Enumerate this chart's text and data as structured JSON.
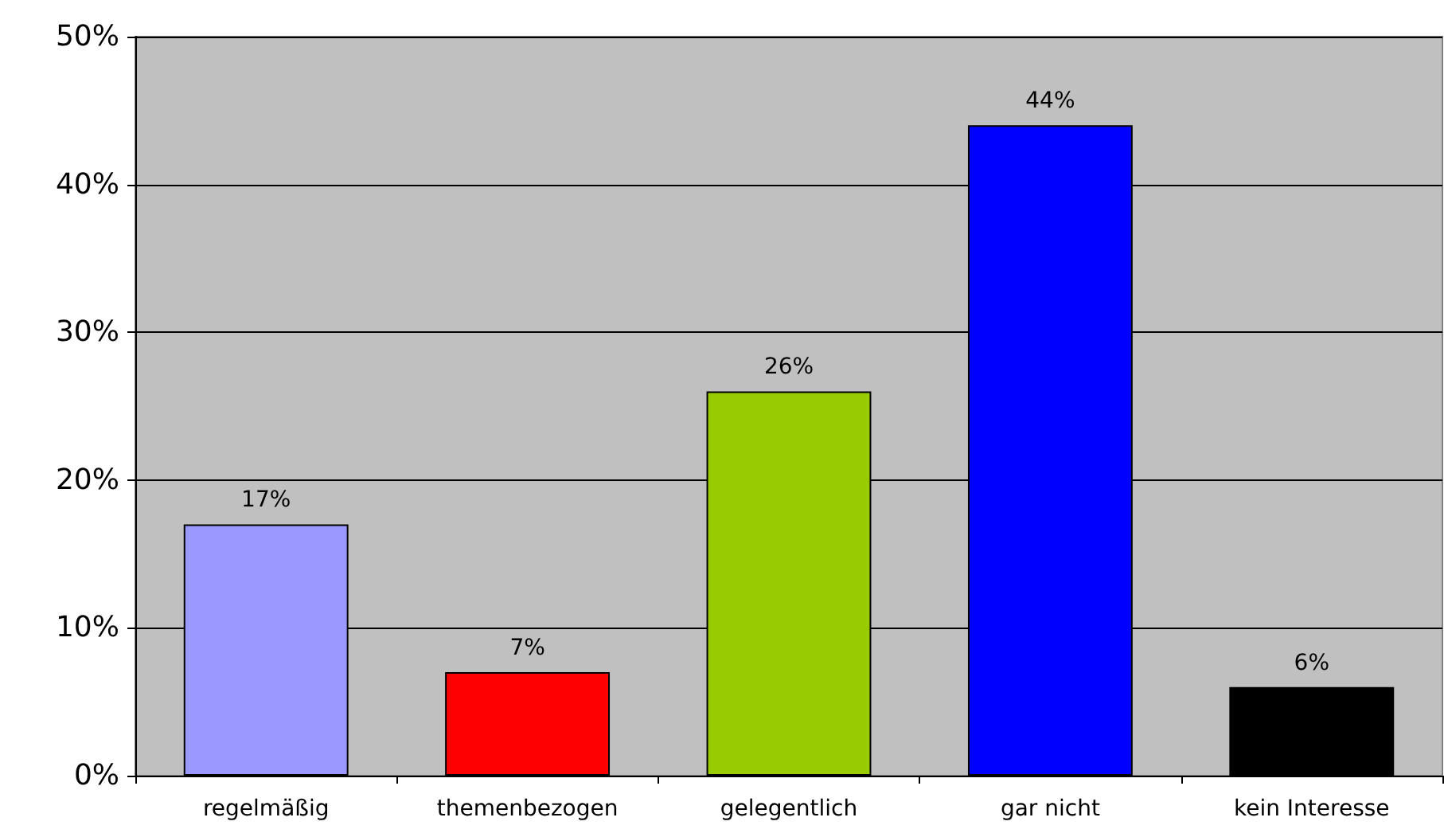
{
  "chart_data": {
    "type": "bar",
    "categories": [
      "regelmäßig",
      "themenbezogen",
      "gelegentlich",
      "gar nicht",
      "kein Interesse"
    ],
    "values": [
      17,
      7,
      26,
      44,
      6
    ],
    "colors": [
      "#9999ff",
      "#ff0000",
      "#99cc00",
      "#0000ff",
      "#000000"
    ],
    "value_labels": [
      "17%",
      "7%",
      "26%",
      "44%",
      "6%"
    ],
    "ylim": [
      0,
      50
    ],
    "yticks": [
      {
        "value": 0,
        "label": "0%"
      },
      {
        "value": 10,
        "label": "10%"
      },
      {
        "value": 20,
        "label": "20%"
      },
      {
        "value": 30,
        "label": "30%"
      },
      {
        "value": 40,
        "label": "40%"
      },
      {
        "value": 50,
        "label": "50%"
      }
    ],
    "grid": "y"
  }
}
